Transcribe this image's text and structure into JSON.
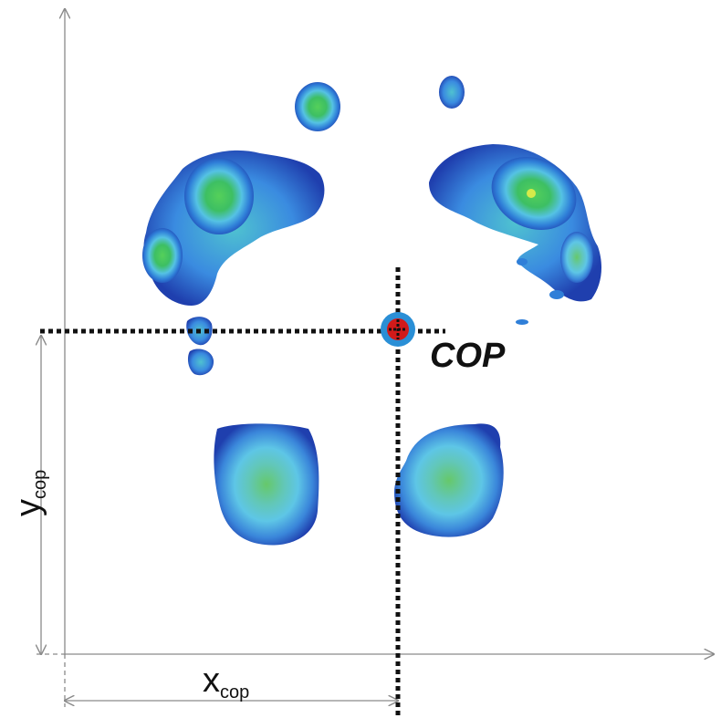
{
  "labels": {
    "cop": "COP",
    "y_main": "y",
    "y_sub": "cop",
    "x_main": "x",
    "x_sub": "cop"
  },
  "colors": {
    "edge": "#1f3fae",
    "mid": "#2f7fd8",
    "light": "#57c3e8",
    "core": "#3fbf6a",
    "hot": "#a8e04a",
    "cop_outer": "#2a8fd6",
    "cop_inner": "#d11a1a",
    "axis": "#8a8a8a",
    "dotted": "#111111"
  },
  "icons": {
    "cop_marker": "target-circle-icon"
  }
}
